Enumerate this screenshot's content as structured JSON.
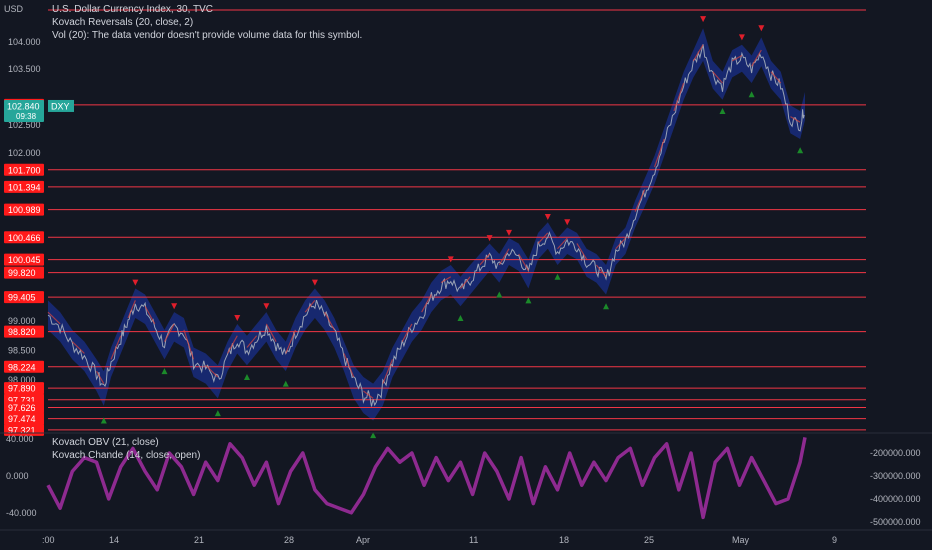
{
  "currency": "USD",
  "legend": {
    "main": "U.S. Dollar Currency Index, 30, TVC",
    "reversals": "Kovach Reversals (20, close, 2)",
    "volume": "Vol (20): The data vendor doesn't provide volume data for this symbol.",
    "obv": "Kovach OBV (21, close)",
    "chande": "Kovach Chande (14, close, open)"
  },
  "price_badge": {
    "symbol": "DXY",
    "price": "102.840",
    "countdown": "09:38"
  },
  "colors": {
    "background": "#131722",
    "hline": "#f23645",
    "badge_red": "#ff1a1a",
    "badge_teal": "#26a69a",
    "down_marker": "#e01e2b",
    "up_marker": "#1b8a2a",
    "band": "#1a2f8a",
    "price_line": "#9aa3b5",
    "osc": "#8e2a90"
  },
  "chart_data": [
    {
      "type": "line",
      "title": "U.S. Dollar Currency Index, 30, TVC",
      "ylim": [
        97.2,
        104.3
      ],
      "y_ticks": [
        "104.000",
        "103.500",
        "102.500",
        "102.000",
        "99.000",
        "98.500",
        "98.000"
      ],
      "x_ticks": [
        ":00",
        "14",
        "21",
        "28",
        "Apr",
        "11",
        "18",
        "25",
        "May",
        "9"
      ],
      "horizontal_levels": [
        {
          "value": 104.35,
          "label": ""
        },
        {
          "value": 102.86,
          "label": "102.860"
        },
        {
          "value": 101.7,
          "label": "101.700"
        },
        {
          "value": 101.394,
          "label": "101.394"
        },
        {
          "value": 100.989,
          "label": "100.989"
        },
        {
          "value": 100.466,
          "label": "100.466"
        },
        {
          "value": 100.045,
          "label": "100.045"
        },
        {
          "value": 99.82,
          "label": "99.820"
        },
        {
          "value": 99.405,
          "label": "99.405"
        },
        {
          "value": 98.82,
          "label": "98.820"
        },
        {
          "value": 98.224,
          "label": "98.224"
        },
        {
          "value": 97.89,
          "label": "97.890"
        },
        {
          "value": 97.731,
          "label": "97.731"
        },
        {
          "value": 97.626,
          "label": "97.626"
        },
        {
          "value": 97.474,
          "label": "97.474"
        },
        {
          "value": 97.321,
          "label": "97.321"
        }
      ],
      "series": [
        {
          "values": [
            [
              0,
              99.1
            ],
            [
              0.5,
              98.9
            ],
            [
              1,
              98.6
            ],
            [
              1.5,
              98.4
            ],
            [
              2,
              98.1
            ],
            [
              2.3,
              97.9
            ],
            [
              2.6,
              98.3
            ],
            [
              3.0,
              98.7
            ],
            [
              3.3,
              99.0
            ],
            [
              3.6,
              99.3
            ],
            [
              4.0,
              99.2
            ],
            [
              4.4,
              98.9
            ],
            [
              4.8,
              98.6
            ],
            [
              5.2,
              98.9
            ],
            [
              5.6,
              98.8
            ],
            [
              6.0,
              98.3
            ],
            [
              6.5,
              98.2
            ],
            [
              7.0,
              98.0
            ],
            [
              7.4,
              98.4
            ],
            [
              7.8,
              98.7
            ],
            [
              8.2,
              98.5
            ],
            [
              8.6,
              98.7
            ],
            [
              9.0,
              98.9
            ],
            [
              9.4,
              98.6
            ],
            [
              9.8,
              98.4
            ],
            [
              10.2,
              98.8
            ],
            [
              10.6,
              99.1
            ],
            [
              11.0,
              99.3
            ],
            [
              11.4,
              99.1
            ],
            [
              11.8,
              98.8
            ],
            [
              12.2,
              98.4
            ],
            [
              12.6,
              98.0
            ],
            [
              13.0,
              97.8
            ],
            [
              13.4,
              97.7
            ],
            [
              13.8,
              97.9
            ],
            [
              14.2,
              98.3
            ],
            [
              14.6,
              98.6
            ],
            [
              15.0,
              98.9
            ],
            [
              15.4,
              99.1
            ],
            [
              15.8,
              99.4
            ],
            [
              16.2,
              99.6
            ],
            [
              16.6,
              99.7
            ],
            [
              17.0,
              99.5
            ],
            [
              17.4,
              99.7
            ],
            [
              17.8,
              99.9
            ],
            [
              18.2,
              100.1
            ],
            [
              18.6,
              99.9
            ],
            [
              19.0,
              100.2
            ],
            [
              19.4,
              100.1
            ],
            [
              19.8,
              99.8
            ],
            [
              20.2,
              100.3
            ],
            [
              20.6,
              100.5
            ],
            [
              21.0,
              100.2
            ],
            [
              21.4,
              100.4
            ],
            [
              21.8,
              100.3
            ],
            [
              22.2,
              100.0
            ],
            [
              22.6,
              99.9
            ],
            [
              23.0,
              99.7
            ],
            [
              23.4,
              100.2
            ],
            [
              23.8,
              100.4
            ],
            [
              24.2,
              100.9
            ],
            [
              24.6,
              101.3
            ],
            [
              25.0,
              101.7
            ],
            [
              25.4,
              102.2
            ],
            [
              25.8,
              102.7
            ],
            [
              26.2,
              103.2
            ],
            [
              26.6,
              103.6
            ],
            [
              27.0,
              103.9
            ],
            [
              27.4,
              103.4
            ],
            [
              27.8,
              103.2
            ],
            [
              28.2,
              103.6
            ],
            [
              28.6,
              103.7
            ],
            [
              29.0,
              103.5
            ],
            [
              29.4,
              103.8
            ],
            [
              29.8,
              103.4
            ],
            [
              30.2,
              103.2
            ],
            [
              30.6,
              102.6
            ],
            [
              31.0,
              102.5
            ],
            [
              31.2,
              102.84
            ]
          ]
        }
      ],
      "reversal_down_markers": 60,
      "reversal_up_markers": 60,
      "current_price": 102.84
    },
    {
      "type": "line",
      "title": "Kovach Chande (14, close, open)",
      "ylim": [
        -55,
        45
      ],
      "y_ticks": [
        "40.000",
        "0.000",
        "-40.000"
      ],
      "series": [
        {
          "name": "Kovach Chande",
          "values": [
            [
              0,
              -10
            ],
            [
              0.5,
              -35
            ],
            [
              1,
              5
            ],
            [
              1.5,
              20
            ],
            [
              2,
              15
            ],
            [
              2.5,
              -25
            ],
            [
              3,
              10
            ],
            [
              3.5,
              30
            ],
            [
              4,
              5
            ],
            [
              4.5,
              -15
            ],
            [
              5,
              25
            ],
            [
              5.5,
              10
            ],
            [
              6,
              -20
            ],
            [
              6.5,
              15
            ],
            [
              7,
              -5
            ],
            [
              7.5,
              35
            ],
            [
              8,
              20
            ],
            [
              8.5,
              -10
            ],
            [
              9,
              15
            ],
            [
              9.5,
              -30
            ],
            [
              10,
              5
            ],
            [
              10.5,
              25
            ],
            [
              11,
              -15
            ],
            [
              11.5,
              -30
            ],
            [
              12,
              -35
            ],
            [
              12.5,
              -40
            ],
            [
              13,
              -20
            ],
            [
              13.5,
              10
            ],
            [
              14,
              30
            ],
            [
              14.5,
              15
            ],
            [
              15,
              25
            ],
            [
              15.5,
              -10
            ],
            [
              16,
              20
            ],
            [
              16.5,
              -5
            ],
            [
              17,
              15
            ],
            [
              17.5,
              -20
            ],
            [
              18,
              25
            ],
            [
              18.5,
              5
            ],
            [
              19,
              -25
            ],
            [
              19.5,
              20
            ],
            [
              20,
              -30
            ],
            [
              20.5,
              10
            ],
            [
              21,
              -15
            ],
            [
              21.5,
              25
            ],
            [
              22,
              -10
            ],
            [
              22.5,
              15
            ],
            [
              23,
              -5
            ],
            [
              23.5,
              20
            ],
            [
              24,
              30
            ],
            [
              24.5,
              -10
            ],
            [
              25,
              20
            ],
            [
              25.5,
              35
            ],
            [
              26,
              -15
            ],
            [
              26.5,
              25
            ],
            [
              27,
              -45
            ],
            [
              27.5,
              15
            ],
            [
              28,
              30
            ],
            [
              28.5,
              -10
            ],
            [
              29,
              20
            ],
            [
              29.5,
              -5
            ],
            [
              30,
              -30
            ],
            [
              30.5,
              -25
            ],
            [
              31,
              15
            ],
            [
              31.2,
              42
            ]
          ]
        }
      ]
    }
  ],
  "obv_axis": {
    "ticks": [
      "-200000.000",
      "-300000.000",
      "-400000.000",
      "-500000.000"
    ]
  }
}
